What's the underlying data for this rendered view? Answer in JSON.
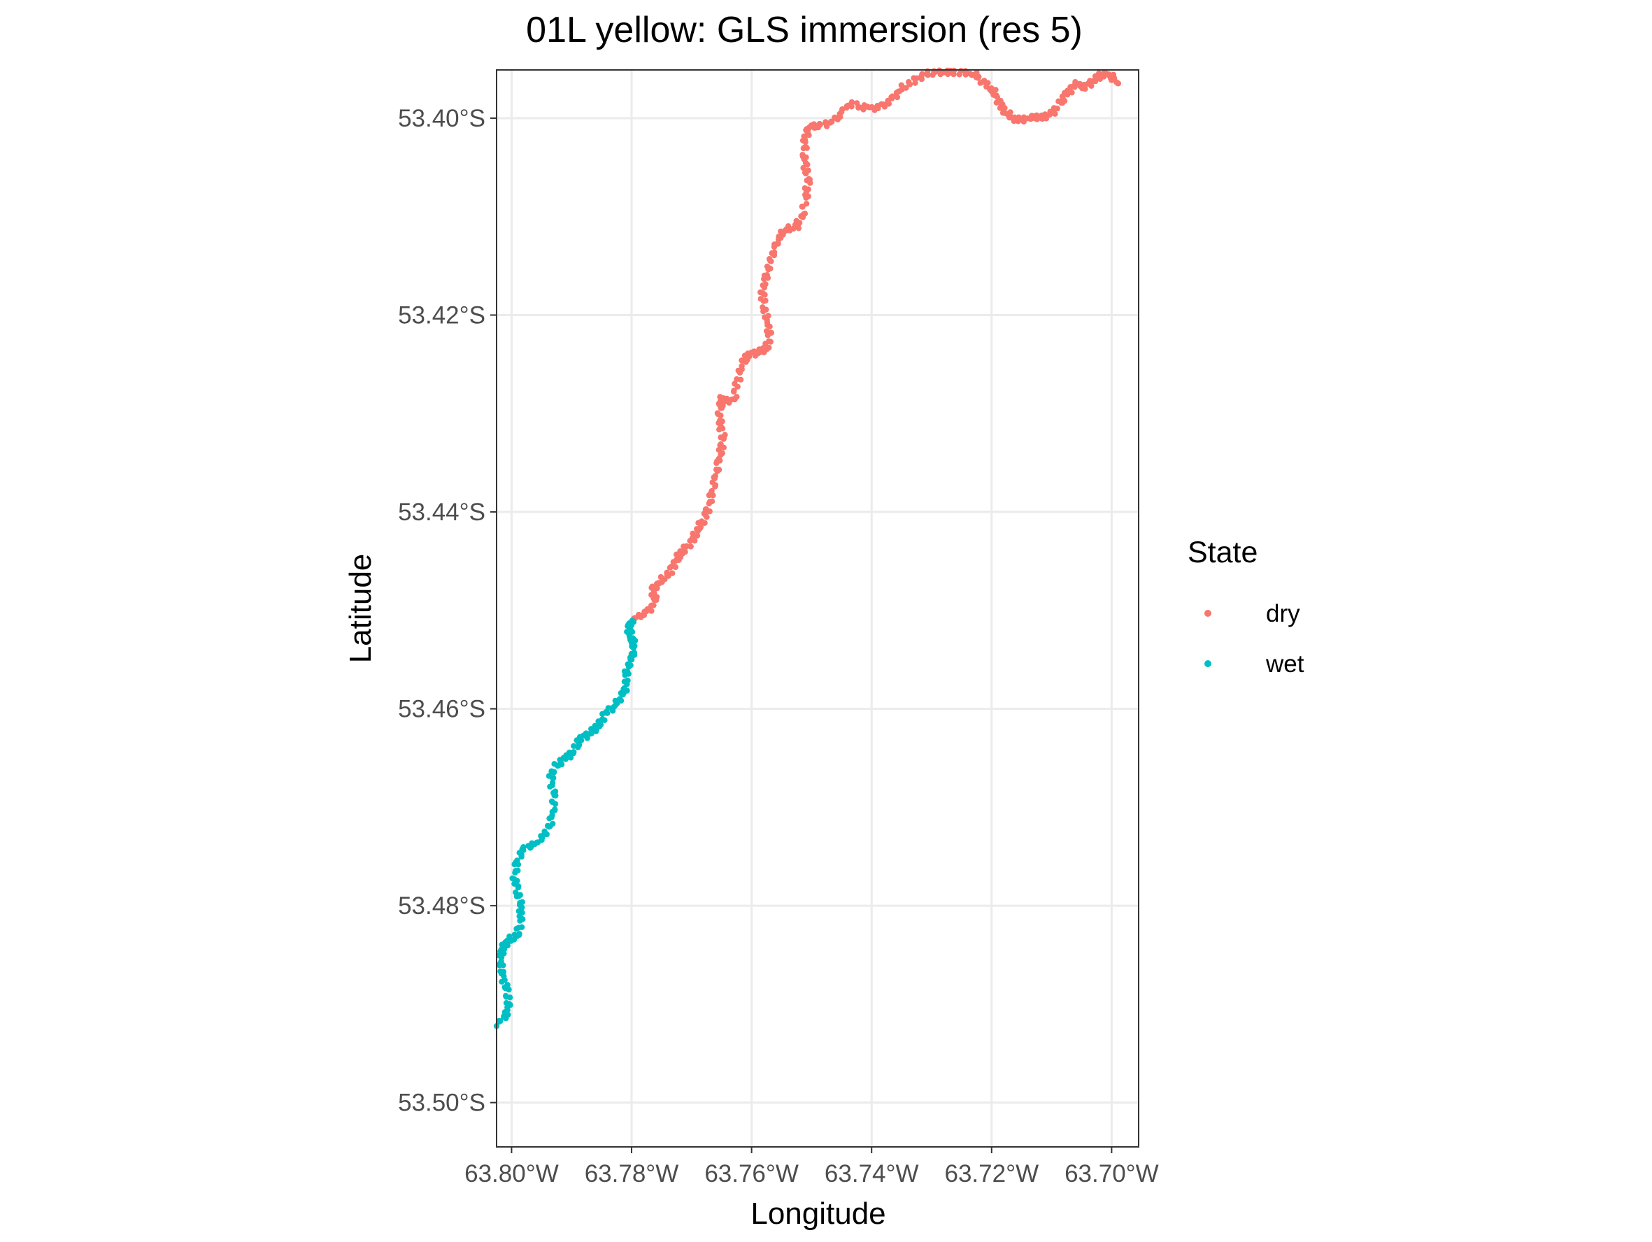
{
  "chart_data": {
    "type": "scatter",
    "title": "01L yellow: GLS immersion (res 5)",
    "xlabel": "Longitude",
    "ylabel": "Latitude",
    "xlim": [
      -63.8025,
      -63.6955
    ],
    "ylim": [
      -53.5045,
      -53.3951
    ],
    "x_ticks": [
      {
        "value": -63.8,
        "label": "63.80°W"
      },
      {
        "value": -63.78,
        "label": "63.78°W"
      },
      {
        "value": -63.76,
        "label": "63.76°W"
      },
      {
        "value": -63.74,
        "label": "63.74°W"
      },
      {
        "value": -63.72,
        "label": "63.72°W"
      },
      {
        "value": -63.7,
        "label": "63.70°W"
      }
    ],
    "y_ticks": [
      {
        "value": -53.4,
        "label": "53.40°S"
      },
      {
        "value": -53.42,
        "label": "53.42°S"
      },
      {
        "value": -53.44,
        "label": "53.44°S"
      },
      {
        "value": -53.46,
        "label": "53.46°S"
      },
      {
        "value": -53.48,
        "label": "53.48°S"
      },
      {
        "value": -53.5,
        "label": "53.50°S"
      }
    ],
    "grid": true,
    "legend": {
      "title": "State",
      "position": "right",
      "entries": [
        {
          "label": "dry",
          "color": "#F8766D"
        },
        {
          "label": "wet",
          "color": "#00BFC4"
        }
      ]
    },
    "series": [
      {
        "name": "dry",
        "color": "#F8766D",
        "points": [
          [
            -63.78,
            -53.451
          ],
          [
            -63.7785,
            -53.4505
          ],
          [
            -63.777,
            -53.45
          ],
          [
            -63.776,
            -53.449
          ],
          [
            -63.7765,
            -53.4478
          ],
          [
            -63.775,
            -53.447
          ],
          [
            -63.7735,
            -53.446
          ],
          [
            -63.7725,
            -53.4448
          ],
          [
            -63.7715,
            -53.444
          ],
          [
            -63.77,
            -53.443
          ],
          [
            -63.769,
            -53.4418
          ],
          [
            -63.768,
            -53.4408
          ],
          [
            -63.7672,
            -53.4395
          ],
          [
            -63.7665,
            -53.438
          ],
          [
            -63.766,
            -53.4365
          ],
          [
            -63.7655,
            -53.435
          ],
          [
            -63.765,
            -53.4335
          ],
          [
            -63.7648,
            -53.432
          ],
          [
            -63.7655,
            -53.4305
          ],
          [
            -63.7652,
            -53.4292
          ],
          [
            -63.765,
            -53.4285
          ],
          [
            -63.763,
            -53.4288
          ],
          [
            -63.7625,
            -53.427
          ],
          [
            -63.7615,
            -53.425
          ],
          [
            -63.7605,
            -53.424
          ],
          [
            -63.759,
            -53.4238
          ],
          [
            -63.7575,
            -53.4235
          ],
          [
            -63.757,
            -53.422
          ],
          [
            -63.7575,
            -53.4205
          ],
          [
            -63.758,
            -53.419
          ],
          [
            -63.7582,
            -53.4175
          ],
          [
            -63.7575,
            -53.416
          ],
          [
            -63.7568,
            -53.4145
          ],
          [
            -63.756,
            -53.413
          ],
          [
            -63.755,
            -53.4118
          ],
          [
            -63.754,
            -53.4112
          ],
          [
            -63.7525,
            -53.411
          ],
          [
            -63.7515,
            -53.4098
          ],
          [
            -63.751,
            -53.408
          ],
          [
            -63.7505,
            -53.4065
          ],
          [
            -63.751,
            -53.405
          ],
          [
            -63.7512,
            -53.4035
          ],
          [
            -63.751,
            -53.402
          ],
          [
            -63.7505,
            -53.401
          ],
          [
            -63.749,
            -53.4008
          ],
          [
            -63.747,
            -53.4005
          ],
          [
            -63.7455,
            -53.3998
          ],
          [
            -63.744,
            -53.3985
          ],
          [
            -63.742,
            -53.3988
          ],
          [
            -63.74,
            -53.399
          ],
          [
            -63.738,
            -53.3988
          ],
          [
            -63.7365,
            -53.398
          ],
          [
            -63.735,
            -53.397
          ],
          [
            -63.733,
            -53.3962
          ],
          [
            -63.731,
            -53.3955
          ],
          [
            -63.729,
            -53.3953
          ],
          [
            -63.727,
            -53.3954
          ],
          [
            -63.725,
            -53.3953
          ],
          [
            -63.723,
            -53.3955
          ],
          [
            -63.7215,
            -53.3962
          ],
          [
            -63.72,
            -53.397
          ],
          [
            -63.719,
            -53.398
          ],
          [
            -63.718,
            -53.3992
          ],
          [
            -63.7165,
            -53.4
          ],
          [
            -63.715,
            -53.4002
          ],
          [
            -63.713,
            -53.3998
          ],
          [
            -63.7115,
            -53.4
          ],
          [
            -63.71,
            -53.3995
          ],
          [
            -63.7085,
            -53.3985
          ],
          [
            -63.7075,
            -53.3975
          ],
          [
            -63.706,
            -53.3965
          ],
          [
            -63.7045,
            -53.3968
          ],
          [
            -63.703,
            -53.3962
          ],
          [
            -63.7015,
            -53.3955
          ],
          [
            -63.7,
            -53.3958
          ],
          [
            -63.699,
            -53.3965
          ]
        ]
      },
      {
        "name": "wet",
        "color": "#00BFC4",
        "points": [
          [
            -63.8025,
            -53.492
          ],
          [
            -63.801,
            -53.4912
          ],
          [
            -63.8005,
            -53.49
          ],
          [
            -63.8008,
            -53.4885
          ],
          [
            -63.8015,
            -53.487
          ],
          [
            -63.8018,
            -53.4855
          ],
          [
            -63.8015,
            -53.4842
          ],
          [
            -63.8005,
            -53.4835
          ],
          [
            -63.799,
            -53.483
          ],
          [
            -63.7985,
            -53.4815
          ],
          [
            -63.7985,
            -53.48
          ],
          [
            -63.799,
            -53.4785
          ],
          [
            -63.7995,
            -53.477
          ],
          [
            -63.799,
            -53.4755
          ],
          [
            -63.798,
            -53.4742
          ],
          [
            -63.796,
            -53.4738
          ],
          [
            -63.7945,
            -53.4728
          ],
          [
            -63.7935,
            -53.4715
          ],
          [
            -63.793,
            -53.47
          ],
          [
            -63.793,
            -53.4685
          ],
          [
            -63.7935,
            -53.467
          ],
          [
            -63.7925,
            -53.4658
          ],
          [
            -63.791,
            -53.465
          ],
          [
            -63.7895,
            -53.4642
          ],
          [
            -63.7885,
            -53.463
          ],
          [
            -63.787,
            -53.4625
          ],
          [
            -63.7855,
            -53.4618
          ],
          [
            -63.7845,
            -53.4605
          ],
          [
            -63.783,
            -53.4598
          ],
          [
            -63.7818,
            -53.4588
          ],
          [
            -63.781,
            -53.4578
          ],
          [
            -63.7808,
            -53.4562
          ],
          [
            -63.78,
            -53.455
          ],
          [
            -63.7795,
            -53.4538
          ],
          [
            -63.78,
            -53.4528
          ],
          [
            -63.7805,
            -53.4518
          ],
          [
            -63.78,
            -53.451
          ]
        ]
      }
    ]
  }
}
